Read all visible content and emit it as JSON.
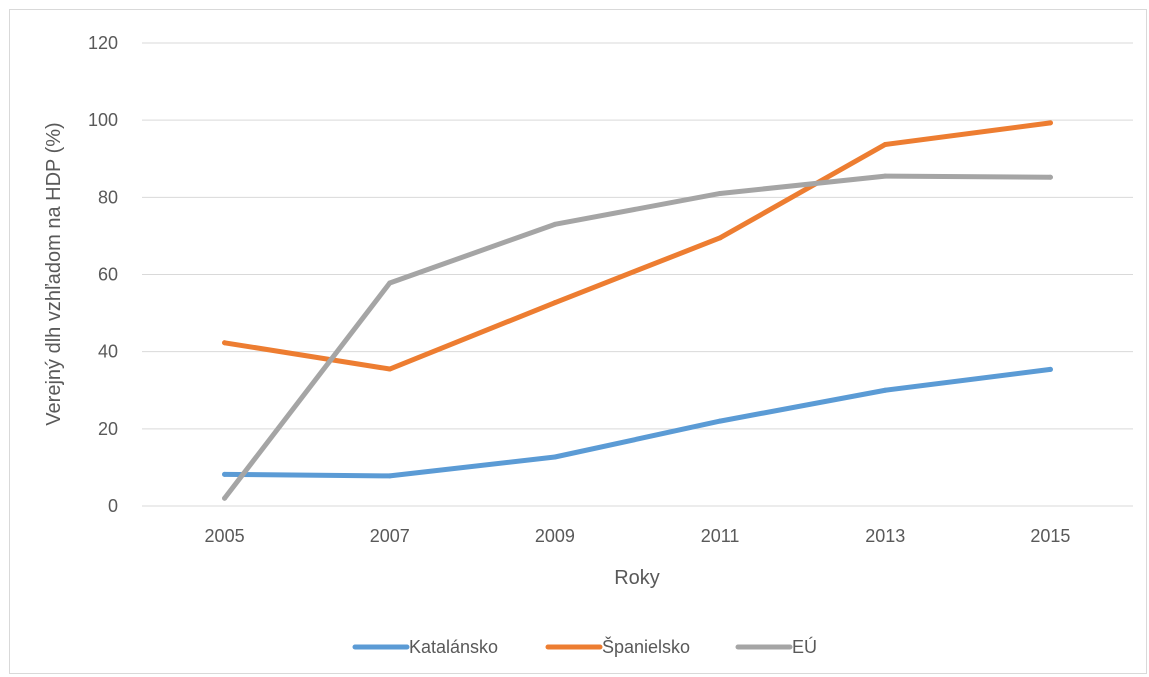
{
  "chart_data": {
    "type": "line",
    "title": "",
    "xlabel": "Roky",
    "ylabel": "Verejný dlh vzhľadom na HDP (%)",
    "categories": [
      "2005",
      "2007",
      "2009",
      "2011",
      "2013",
      "2015"
    ],
    "ylim": [
      0,
      120
    ],
    "yticks": [
      0,
      20,
      40,
      60,
      80,
      100,
      120
    ],
    "grid": true,
    "legend_position": "bottom",
    "series": [
      {
        "name": "Katalánsko",
        "color": "#5b9bd5",
        "values": [
          8.2,
          7.8,
          12.7,
          22.0,
          30.0,
          35.4
        ]
      },
      {
        "name": "Španielsko",
        "color": "#ed7d31",
        "values": [
          42.3,
          35.5,
          52.7,
          69.5,
          93.7,
          99.3
        ]
      },
      {
        "name": "EÚ",
        "color": "#a5a5a5",
        "values": [
          2.0,
          57.8,
          73.0,
          81.0,
          85.5,
          85.2
        ]
      }
    ]
  }
}
